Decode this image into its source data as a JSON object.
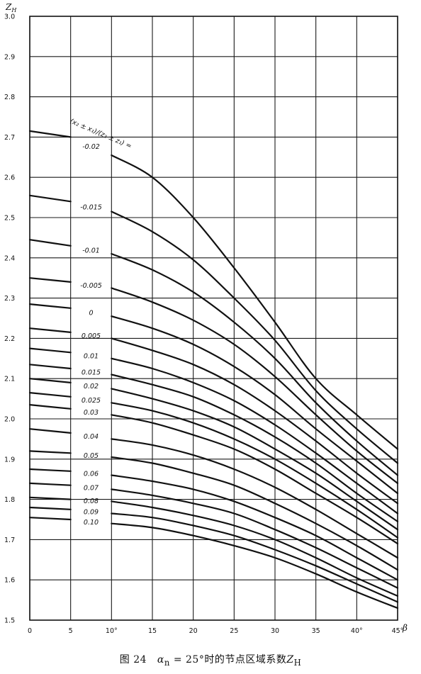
{
  "chart_data": {
    "type": "line",
    "ylabel": "Z_H",
    "xlabel": "β",
    "xlim": [
      0,
      45
    ],
    "ylim": [
      1.5,
      3.0
    ],
    "grid": true,
    "x_ticks": [
      {
        "value": 0,
        "label": "0"
      },
      {
        "value": 5,
        "label": "5"
      },
      {
        "value": 10,
        "label": "10°"
      },
      {
        "value": 15,
        "label": "15"
      },
      {
        "value": 20,
        "label": "20"
      },
      {
        "value": 25,
        "label": "25"
      },
      {
        "value": 30,
        "label": "30"
      },
      {
        "value": 35,
        "label": "35"
      },
      {
        "value": 40,
        "label": "40°"
      },
      {
        "value": 45,
        "label": "45°"
      }
    ],
    "y_ticks": [
      {
        "value": 1.5,
        "label": "1.5"
      },
      {
        "value": 1.6,
        "label": "1.6"
      },
      {
        "value": 1.7,
        "label": "1.7"
      },
      {
        "value": 1.8,
        "label": "1.8"
      },
      {
        "value": 1.9,
        "label": "1.9"
      },
      {
        "value": 2.0,
        "label": "2.0"
      },
      {
        "value": 2.1,
        "label": "2.1"
      },
      {
        "value": 2.2,
        "label": "2.2"
      },
      {
        "value": 2.3,
        "label": "2.3"
      },
      {
        "value": 2.4,
        "label": "2.4"
      },
      {
        "value": 2.5,
        "label": "2.5"
      },
      {
        "value": 2.6,
        "label": "2.6"
      },
      {
        "value": 2.7,
        "label": "2.7"
      },
      {
        "value": 2.8,
        "label": "2.8"
      },
      {
        "value": 2.9,
        "label": "2.9"
      },
      {
        "value": 3.0,
        "label": "3.0"
      }
    ],
    "series_header": "(x₂ ± x₁)/(z₂ ± z₁) =",
    "series": [
      {
        "name": "-0.02",
        "x": [
          0,
          5,
          10,
          15,
          20,
          25,
          30,
          35,
          40,
          45
        ],
        "y": [
          2.715,
          2.7,
          2.655,
          2.6,
          2.5,
          2.375,
          2.24,
          2.1,
          2.01,
          1.925
        ]
      },
      {
        "name": "-0.015",
        "x": [
          0,
          5,
          10,
          15,
          20,
          25,
          30,
          35,
          40,
          45
        ],
        "y": [
          2.555,
          2.54,
          2.515,
          2.465,
          2.395,
          2.3,
          2.195,
          2.07,
          1.975,
          1.89
        ]
      },
      {
        "name": "-0.01",
        "x": [
          0,
          5,
          10,
          15,
          20,
          25,
          30,
          35,
          40,
          45
        ],
        "y": [
          2.445,
          2.43,
          2.41,
          2.37,
          2.315,
          2.24,
          2.15,
          2.04,
          1.945,
          1.86
        ]
      },
      {
        "name": "-0.005",
        "x": [
          0,
          5,
          10,
          15,
          20,
          25,
          30,
          35,
          40,
          45
        ],
        "y": [
          2.35,
          2.34,
          2.325,
          2.29,
          2.245,
          2.185,
          2.105,
          2.01,
          1.92,
          1.84
        ]
      },
      {
        "name": "0",
        "x": [
          0,
          5,
          10,
          15,
          20,
          25,
          30,
          35,
          40,
          45
        ],
        "y": [
          2.285,
          2.275,
          2.255,
          2.225,
          2.185,
          2.13,
          2.06,
          1.975,
          1.895,
          1.815
        ]
      },
      {
        "name": "0.005",
        "x": [
          0,
          5,
          10,
          15,
          20,
          25,
          30,
          35,
          40,
          45
        ],
        "y": [
          2.225,
          2.215,
          2.2,
          2.17,
          2.135,
          2.085,
          2.02,
          1.945,
          1.865,
          1.79
        ]
      },
      {
        "name": "0.01",
        "x": [
          0,
          5,
          10,
          15,
          20,
          25,
          30,
          35,
          40,
          45
        ],
        "y": [
          2.175,
          2.165,
          2.15,
          2.125,
          2.09,
          2.045,
          1.985,
          1.915,
          1.84,
          1.765
        ]
      },
      {
        "name": "0.015",
        "x": [
          0,
          5,
          10,
          15,
          20,
          25,
          30,
          35,
          40,
          45
        ],
        "y": [
          2.135,
          2.125,
          2.11,
          2.085,
          2.055,
          2.01,
          1.955,
          1.89,
          1.815,
          1.745
        ]
      },
      {
        "name": "0.02",
        "x": [
          0,
          5,
          10,
          15,
          20,
          25,
          30,
          35,
          40,
          45
        ],
        "y": [
          2.1,
          2.09,
          2.075,
          2.05,
          2.02,
          1.98,
          1.925,
          1.865,
          1.795,
          1.725
        ]
      },
      {
        "name": "0.025",
        "x": [
          0,
          5,
          10,
          15,
          20,
          25,
          30,
          35,
          40,
          45
        ],
        "y": [
          2.065,
          2.055,
          2.04,
          2.02,
          1.99,
          1.95,
          1.9,
          1.84,
          1.775,
          1.705
        ]
      },
      {
        "name": "0.03",
        "x": [
          0,
          5,
          10,
          15,
          20,
          25,
          30,
          35,
          40,
          45
        ],
        "y": [
          2.035,
          2.025,
          2.01,
          1.99,
          1.96,
          1.925,
          1.875,
          1.815,
          1.755,
          1.69
        ]
      },
      {
        "name": "0.04",
        "x": [
          0,
          5,
          10,
          15,
          20,
          25,
          30,
          35,
          40,
          45
        ],
        "y": [
          1.975,
          1.965,
          1.95,
          1.935,
          1.91,
          1.875,
          1.83,
          1.775,
          1.715,
          1.655
        ]
      },
      {
        "name": "0.05",
        "x": [
          0,
          5,
          10,
          15,
          20,
          25,
          30,
          35,
          40,
          45
        ],
        "y": [
          1.92,
          1.915,
          1.905,
          1.89,
          1.865,
          1.835,
          1.79,
          1.74,
          1.685,
          1.625
        ]
      },
      {
        "name": "0.06",
        "x": [
          0,
          5,
          10,
          15,
          20,
          25,
          30,
          35,
          40,
          45
        ],
        "y": [
          1.875,
          1.87,
          1.86,
          1.845,
          1.825,
          1.795,
          1.755,
          1.71,
          1.655,
          1.6
        ]
      },
      {
        "name": "0.07",
        "x": [
          0,
          5,
          10,
          15,
          20,
          25,
          30,
          35,
          40,
          45
        ],
        "y": [
          1.84,
          1.835,
          1.825,
          1.81,
          1.79,
          1.765,
          1.725,
          1.68,
          1.63,
          1.58
        ]
      },
      {
        "name": "0.08",
        "x": [
          0,
          5,
          10,
          15,
          20,
          25,
          30,
          35,
          40,
          45
        ],
        "y": [
          1.805,
          1.8,
          1.795,
          1.78,
          1.76,
          1.735,
          1.7,
          1.655,
          1.605,
          1.56
        ]
      },
      {
        "name": "0.09",
        "x": [
          0,
          5,
          10,
          15,
          20,
          25,
          30,
          35,
          40,
          45
        ],
        "y": [
          1.78,
          1.775,
          1.765,
          1.755,
          1.735,
          1.71,
          1.675,
          1.635,
          1.59,
          1.545
        ]
      },
      {
        "name": "0.10",
        "x": [
          0,
          5,
          10,
          15,
          20,
          25,
          30,
          35,
          40,
          45
        ],
        "y": [
          1.755,
          1.75,
          1.74,
          1.73,
          1.71,
          1.685,
          1.655,
          1.615,
          1.57,
          1.53
        ]
      }
    ]
  },
  "caption": {
    "figure_no": "图 24",
    "alpha": "α",
    "alpha_sub": "n",
    "rest": " = 25°时的节点区域系数",
    "z": "Z",
    "z_sub": "H"
  }
}
